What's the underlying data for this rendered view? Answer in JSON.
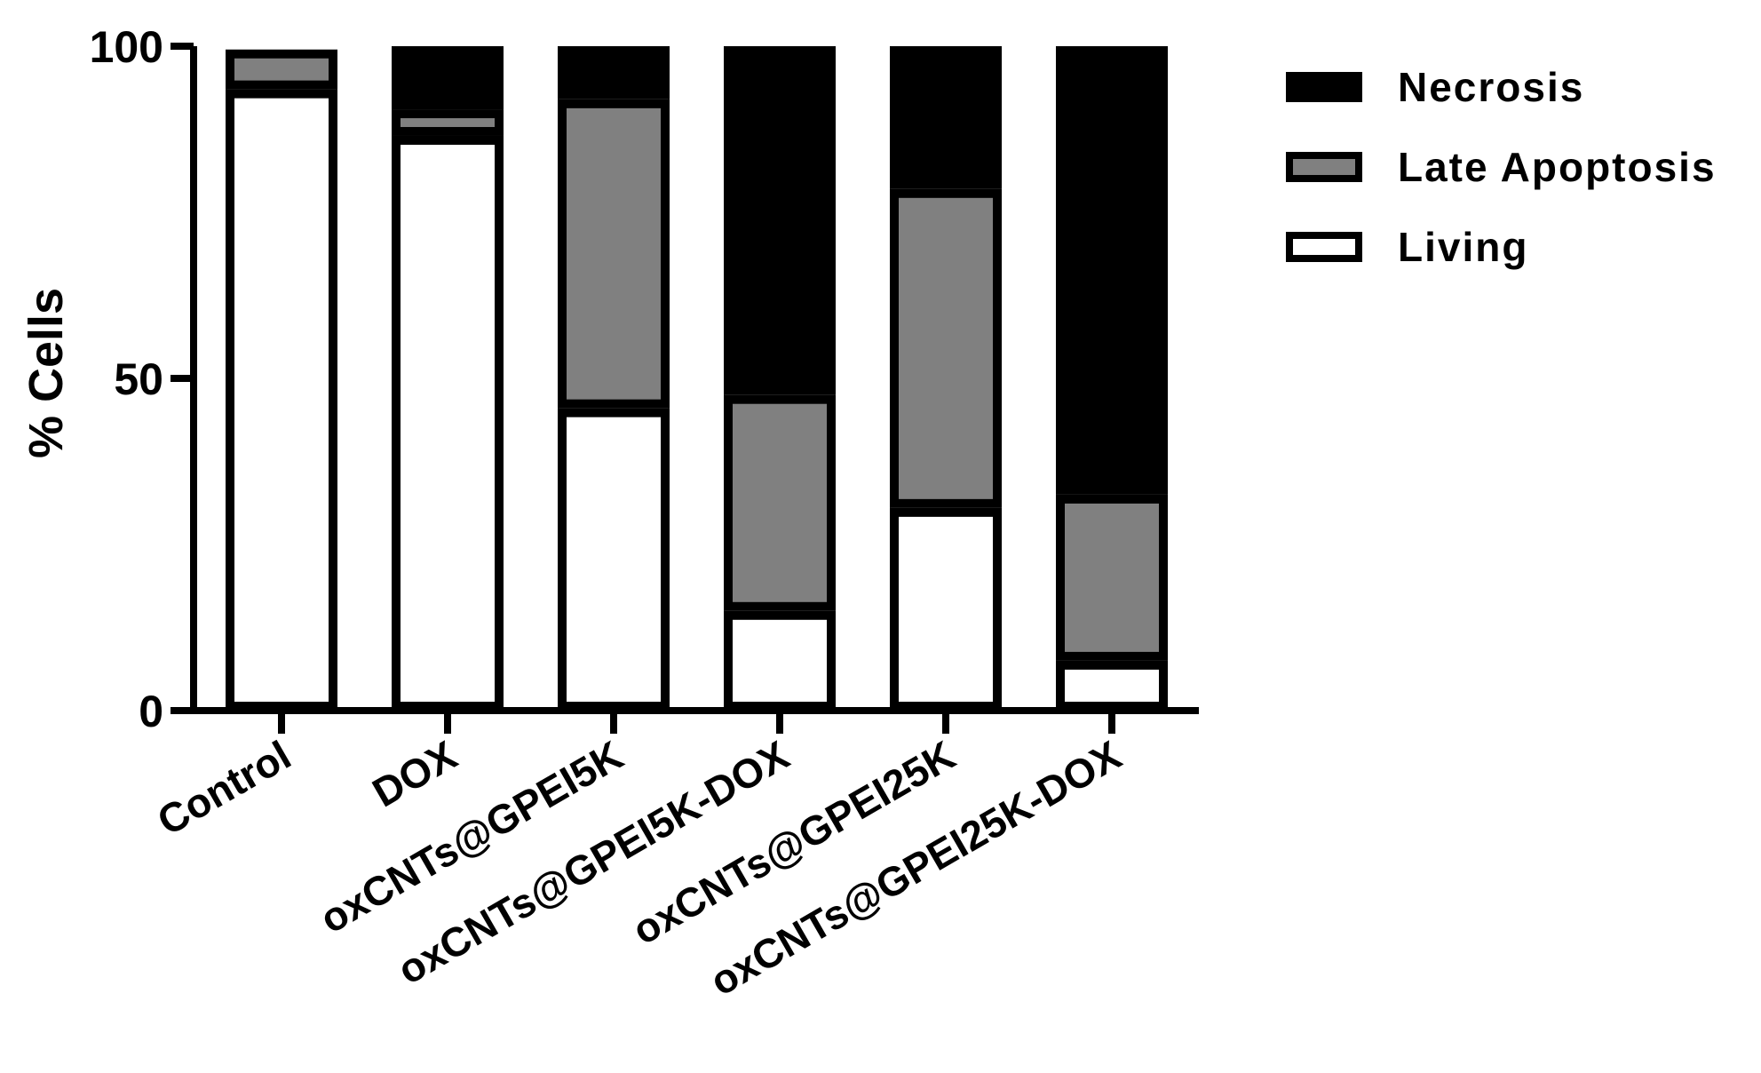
{
  "chart_data": {
    "type": "bar",
    "stacked": true,
    "title": "",
    "xlabel": "",
    "ylabel": "% Cells",
    "ylim": [
      0,
      100
    ],
    "yticks": [
      "0",
      "50",
      "100"
    ],
    "grid": false,
    "legend_position": "top-right",
    "categories": [
      "Control",
      "DOX",
      "oxCNTs@GPEI5K",
      "oxCNTs@GPEI5K-DOX",
      "oxCNTs@GPEI25K",
      "oxCNTs@GPEI25K-DOX"
    ],
    "series": [
      {
        "name": "Living",
        "color": "#ffffff",
        "values": [
          93.5,
          86.5,
          45.5,
          15,
          30.5,
          7.5
        ]
      },
      {
        "name": "Late Apoptosis",
        "color": "#808080",
        "values": [
          6,
          4,
          46.5,
          32.5,
          48,
          25
        ]
      },
      {
        "name": "Necrosis",
        "color": "#000000",
        "values": [
          0.5,
          9.5,
          8,
          52.5,
          21.5,
          67.5
        ]
      }
    ],
    "legend": [
      "Necrosis",
      "Late Apoptosis",
      "Living"
    ]
  }
}
